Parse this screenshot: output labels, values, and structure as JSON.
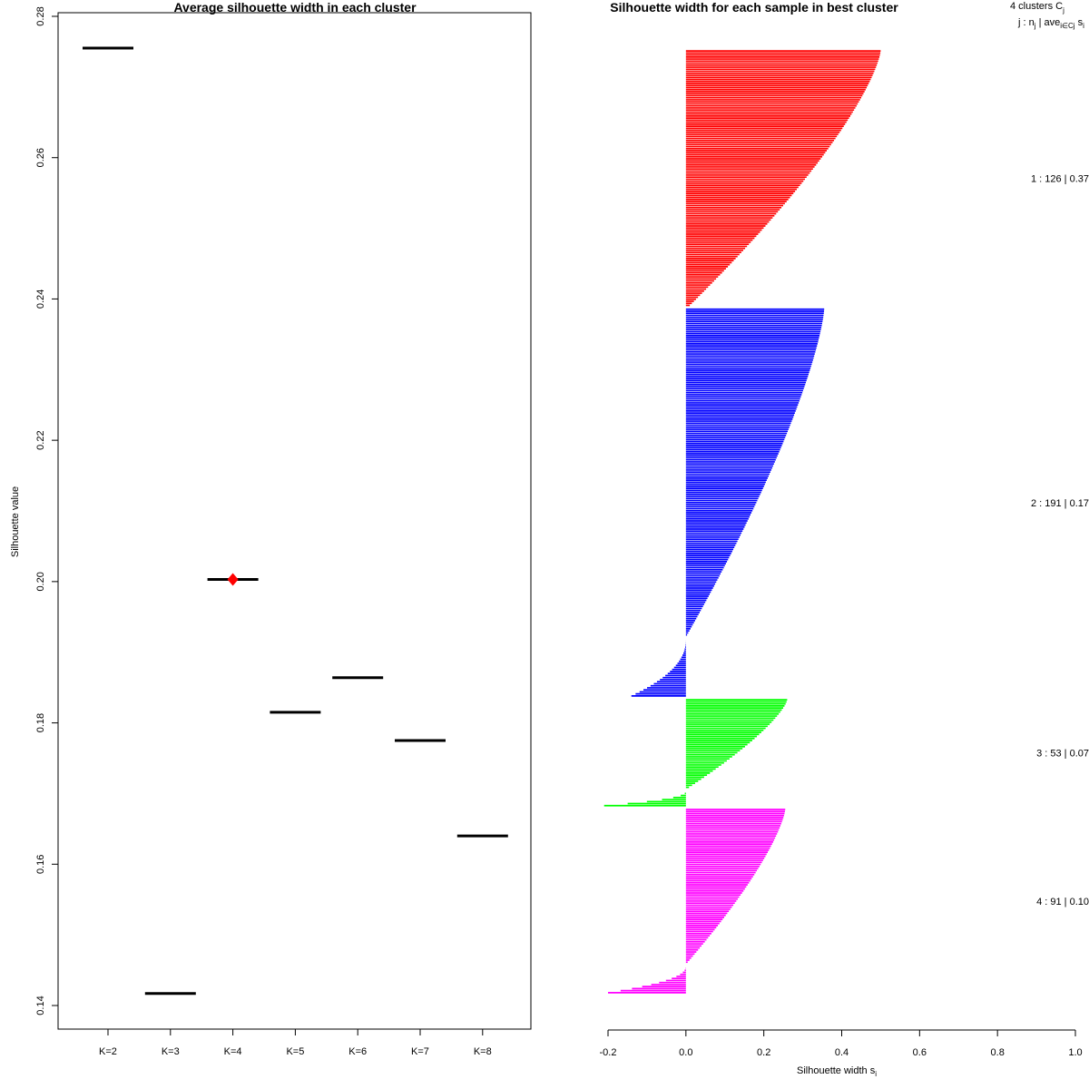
{
  "chart_data": [
    {
      "type": "dot",
      "title": "Average silhouette width in each cluster",
      "ylabel": "Silhouette value",
      "xlabel": "",
      "ylim": [
        0.14,
        0.28
      ],
      "yticks": [
        "0.14",
        "0.16",
        "0.18",
        "0.20",
        "0.22",
        "0.24",
        "0.26",
        "0.28"
      ],
      "categories": [
        "K=2",
        "K=3",
        "K=4",
        "K=5",
        "K=6",
        "K=7",
        "K=8"
      ],
      "values": [
        0.2755,
        0.1417,
        0.2003,
        0.1815,
        0.1864,
        0.1775,
        0.164
      ],
      "best": "K=4",
      "line_color": "#000000",
      "best_color": "#ff0000"
    },
    {
      "type": "bar",
      "orientation": "horizontal",
      "title": "Silhouette width for each sample in best cluster",
      "xlabel": "Silhouette width s",
      "xlabel_sub": "i",
      "xlim": [
        -0.2,
        1.0
      ],
      "xticks": [
        "-0.2",
        "0.0",
        "0.2",
        "0.4",
        "0.6",
        "0.8",
        "1.0"
      ],
      "header_line1": "4  clusters  C",
      "header_line1_sub": "j",
      "header_line2_a": "j :  n",
      "header_line2_sub_n": "j",
      "header_line2_b": " | ave",
      "header_line2_sub_i": "i∈Cj",
      "header_line2_c": "  s",
      "header_line2_sub_s": "i",
      "clusters": [
        {
          "id": 1,
          "n": 126,
          "avg": 0.37,
          "label": "1 :  126  |  0.37",
          "color": "#ff0000",
          "max": 0.5,
          "min_end": 0.01,
          "neg": 0.0
        },
        {
          "id": 2,
          "n": 191,
          "avg": 0.17,
          "label": "2 :  191  |  0.17",
          "color": "#0000ff",
          "max": 0.355,
          "min_end": 0.0,
          "neg": -0.14
        },
        {
          "id": 3,
          "n": 53,
          "avg": 0.07,
          "label": "3 :  53  |  0.07",
          "color": "#00ff00",
          "max": 0.26,
          "min_end": 0.0,
          "neg": -0.21
        },
        {
          "id": 4,
          "n": 91,
          "avg": 0.1,
          "label": "4 :  91  |  0.10",
          "color": "#ff00ff",
          "max": 0.255,
          "min_end": 0.0,
          "neg": -0.2
        }
      ]
    }
  ]
}
